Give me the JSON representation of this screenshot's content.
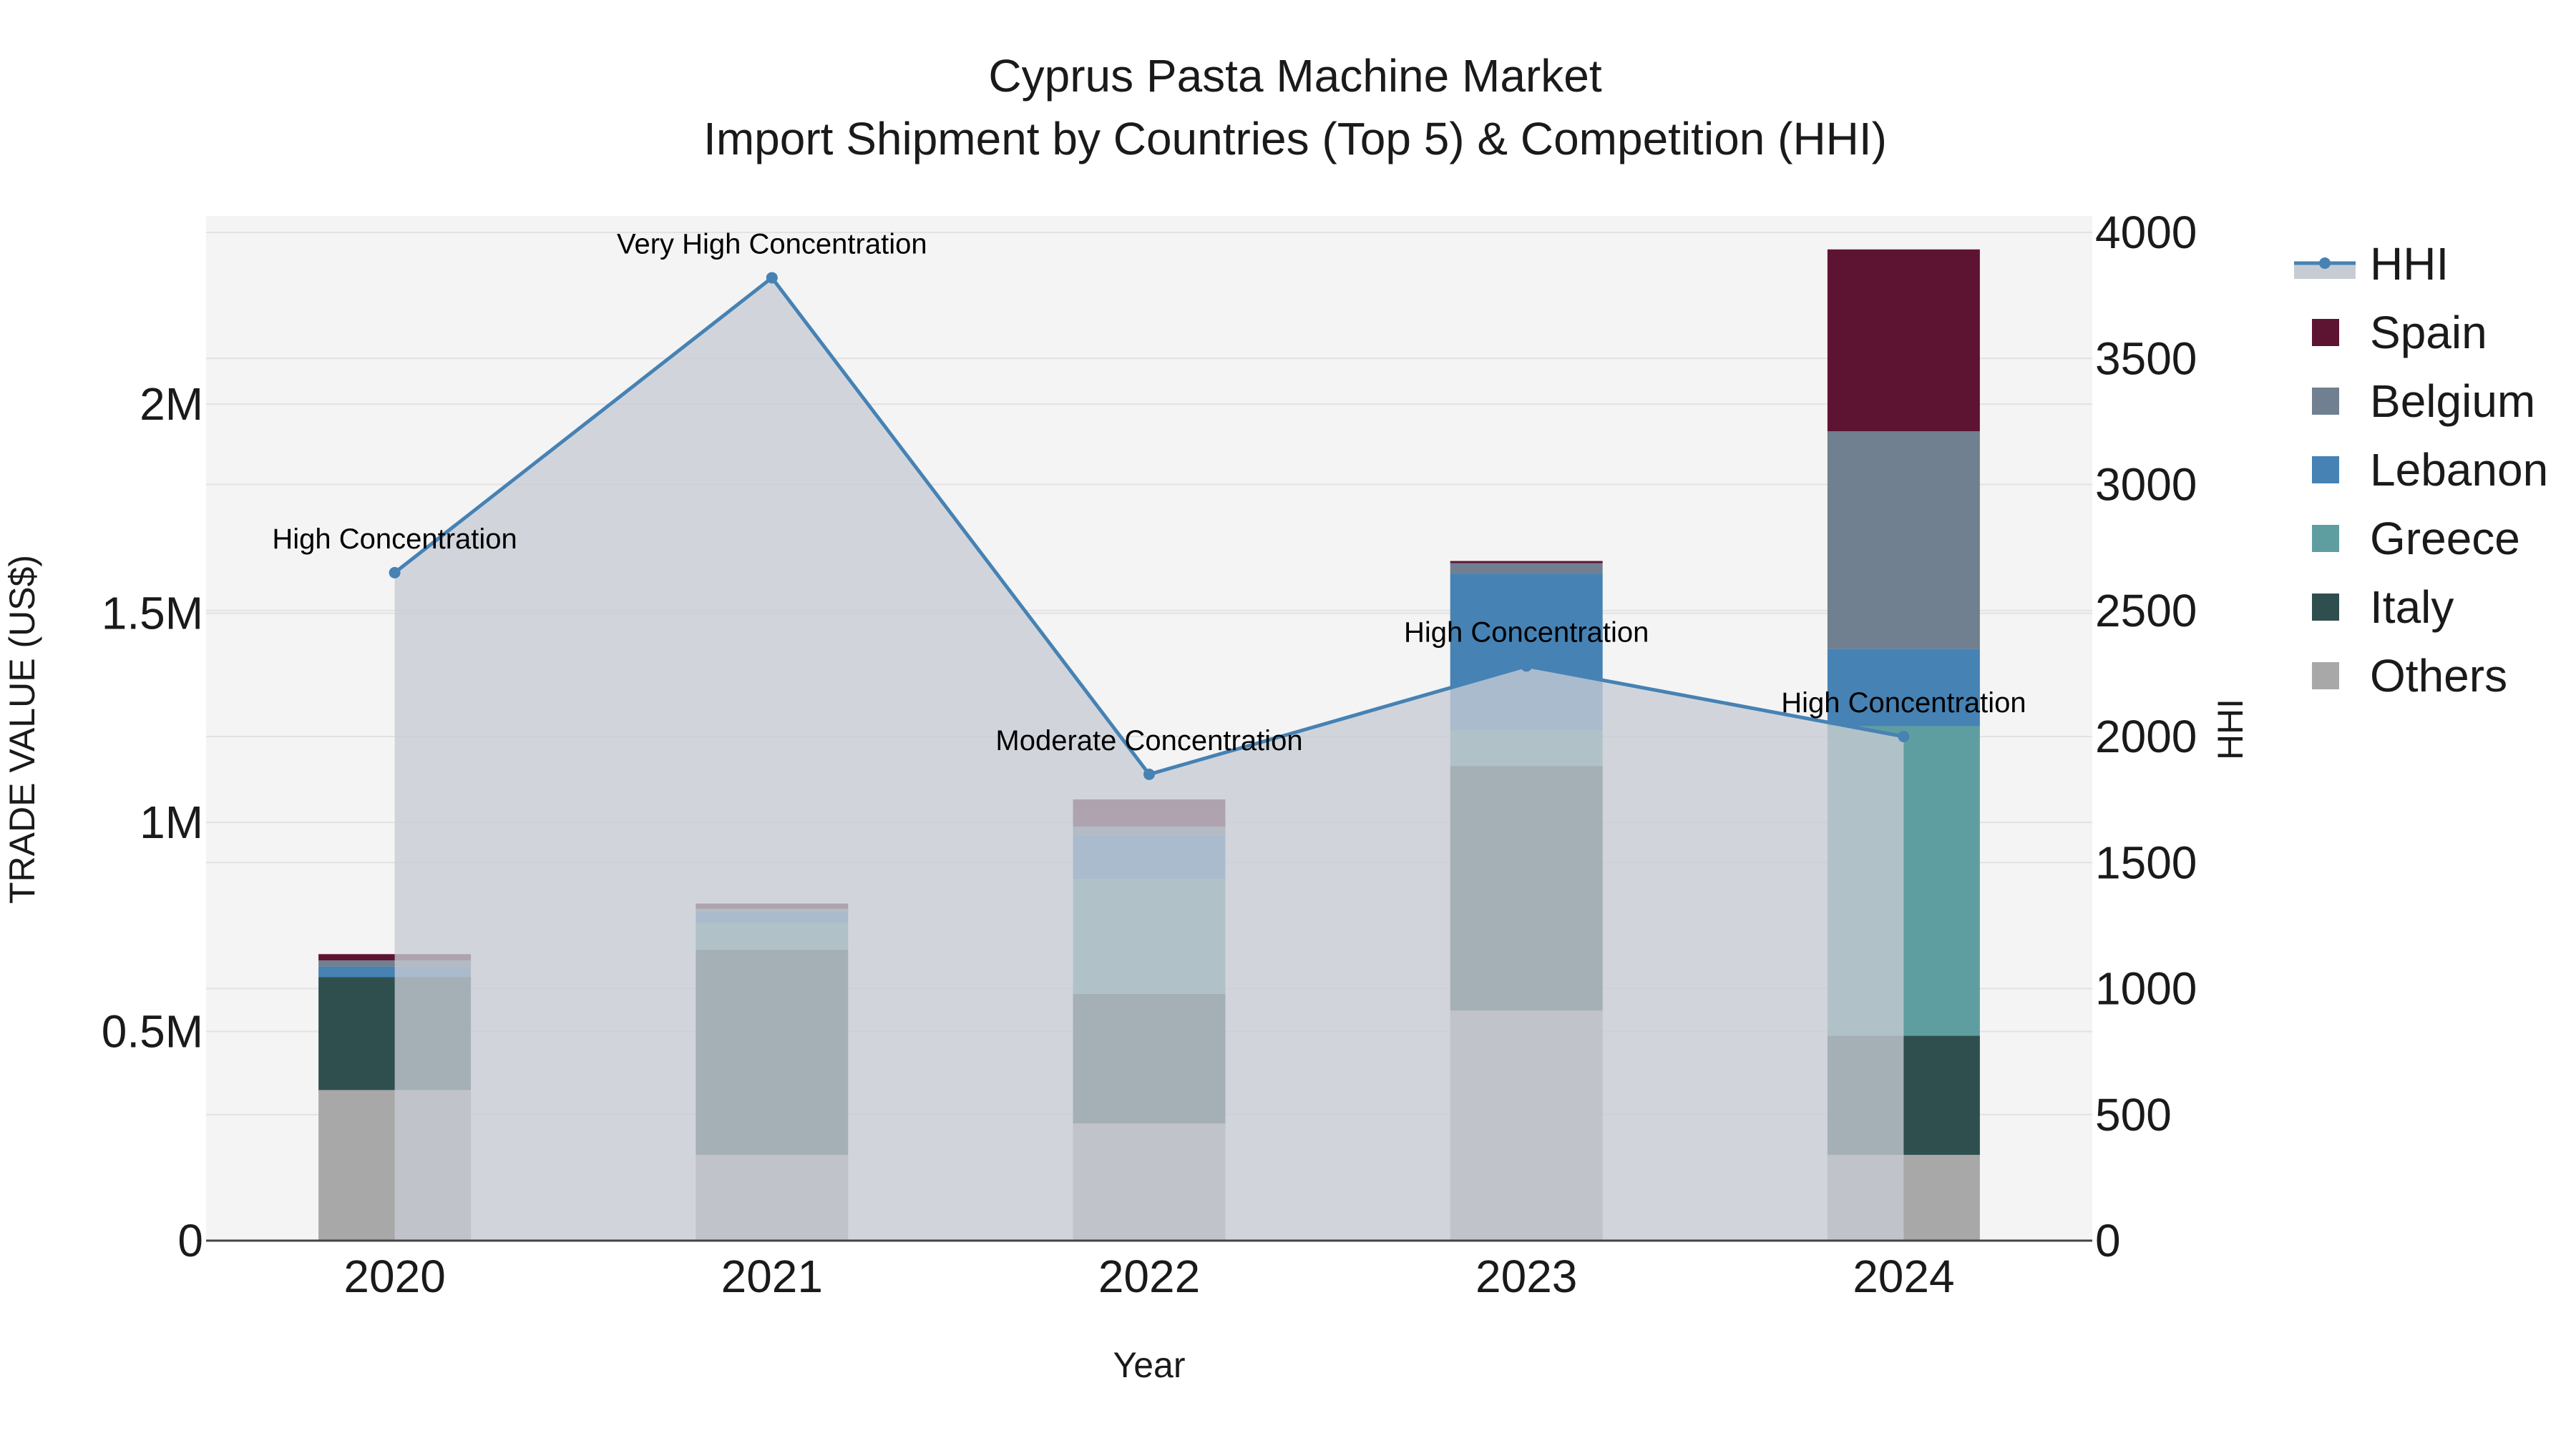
{
  "chart_data": {
    "type": "bar",
    "title": "Cyprus Pasta Machine Market",
    "subtitle": "Import Shipment by Countries (Top 5) & Competition (HHI)",
    "xlabel": "Year",
    "ylabel": "TRADE VALUE (US$)",
    "y2label": "HHI",
    "categories": [
      "2020",
      "2021",
      "2022",
      "2023",
      "2024"
    ],
    "ylim": [
      0,
      2450000
    ],
    "y2lim": [
      0,
      4000
    ],
    "yticks": [
      {
        "value": 0,
        "label": "0"
      },
      {
        "value": 500000,
        "label": "0.5M"
      },
      {
        "value": 1000000,
        "label": "1M"
      },
      {
        "value": 1500000,
        "label": "1.5M"
      },
      {
        "value": 2000000,
        "label": "2M"
      }
    ],
    "y2ticks": [
      {
        "value": 0,
        "label": "0"
      },
      {
        "value": 500,
        "label": "500"
      },
      {
        "value": 1000,
        "label": "1000"
      },
      {
        "value": 1500,
        "label": "1500"
      },
      {
        "value": 2000,
        "label": "2000"
      },
      {
        "value": 2500,
        "label": "2500"
      },
      {
        "value": 3000,
        "label": "3000"
      },
      {
        "value": 3500,
        "label": "3500"
      },
      {
        "value": 4000,
        "label": "4000"
      }
    ],
    "grid": true,
    "legend_position": "top-right",
    "series": [
      {
        "name": "Others",
        "color": "#a8a8a8",
        "values": [
          360000,
          205000,
          280000,
          550000,
          205000
        ]
      },
      {
        "name": "Italy",
        "color": "#2f4f4f",
        "values": [
          270000,
          490000,
          310000,
          585000,
          285000
        ]
      },
      {
        "name": "Greece",
        "color": "#5f9ea0",
        "values": [
          0,
          65000,
          275000,
          85000,
          740000
        ]
      },
      {
        "name": "Lebanon",
        "color": "#4682b4",
        "values": [
          25000,
          25000,
          105000,
          375000,
          185000
        ]
      },
      {
        "name": "Belgium",
        "color": "#708090",
        "values": [
          15000,
          8000,
          20000,
          25000,
          520000
        ]
      },
      {
        "name": "Spain",
        "color": "#5d1433",
        "values": [
          15000,
          13000,
          65000,
          5000,
          435000
        ]
      }
    ],
    "hhi": {
      "name": "HHI",
      "color": "#4682b4",
      "values": [
        2650,
        3820,
        1850,
        2280,
        2000
      ],
      "annotations": [
        "High Concentration",
        "Very High Concentration",
        "Moderate Concentration",
        "High Concentration",
        "High Concentration"
      ]
    },
    "legend_order": [
      "HHI",
      "Spain",
      "Belgium",
      "Lebanon",
      "Greece",
      "Italy",
      "Others"
    ],
    "colors": {
      "plot_bg": "#f4f4f4",
      "grid": "#e2e2e2",
      "hhi_fill": "#c7ccd4"
    }
  }
}
